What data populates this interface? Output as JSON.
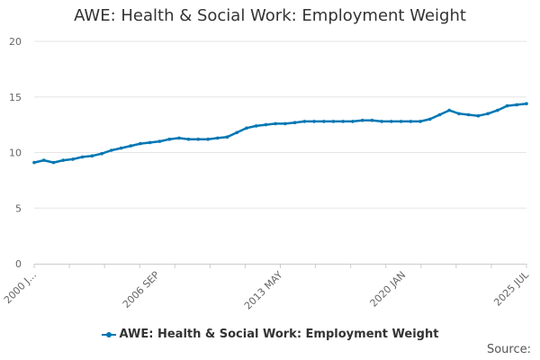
{
  "chart_data": {
    "type": "line",
    "title": "AWE: Health & Social Work: Employment Weight",
    "xlabel": "",
    "ylabel": "",
    "ylim": [
      0,
      20
    ],
    "yticks": [
      "0",
      "5",
      "10",
      "15",
      "20"
    ],
    "xtick_labels": [
      "2000 J...",
      "2006 SEP",
      "2013 MAY",
      "2020 JAN",
      "2025 JUL"
    ],
    "grid": true,
    "legend": "bottom-center",
    "series": [
      {
        "name": "AWE: Health & Social Work: Employment Weight",
        "color": "#0077b3",
        "x": [
          "2000 JAN",
          "2000 JUL",
          "2001 JAN",
          "2001 JUL",
          "2002 JAN",
          "2002 JUL",
          "2003 JAN",
          "2003 JUL",
          "2004 JAN",
          "2004 JUL",
          "2005 JAN",
          "2005 JUL",
          "2006 JAN",
          "2006 JUL",
          "2007 JAN",
          "2007 JUL",
          "2008 JAN",
          "2008 JUL",
          "2009 JAN",
          "2009 JUL",
          "2010 JAN",
          "2010 JUL",
          "2011 JAN",
          "2011 JUL",
          "2012 JAN",
          "2012 JUL",
          "2013 JAN",
          "2013 JUL",
          "2014 JAN",
          "2014 JUL",
          "2015 JAN",
          "2015 JUL",
          "2016 JAN",
          "2016 JUL",
          "2017 JAN",
          "2017 JUL",
          "2018 JAN",
          "2018 JUL",
          "2019 JAN",
          "2019 JUL",
          "2020 JAN",
          "2020 JUL",
          "2021 JAN",
          "2021 JUL",
          "2022 JAN",
          "2022 JUL",
          "2023 JAN",
          "2023 JUL",
          "2024 JAN",
          "2024 JUL",
          "2025 JAN",
          "2025 JUL"
        ],
        "y": [
          9.1,
          9.3,
          9.1,
          9.3,
          9.4,
          9.6,
          9.7,
          9.9,
          10.2,
          10.4,
          10.6,
          10.8,
          10.9,
          11.0,
          11.2,
          11.3,
          11.2,
          11.2,
          11.2,
          11.3,
          11.4,
          11.8,
          12.2,
          12.4,
          12.5,
          12.6,
          12.6,
          12.7,
          12.8,
          12.8,
          12.8,
          12.8,
          12.8,
          12.8,
          12.9,
          12.9,
          12.8,
          12.8,
          12.8,
          12.8,
          12.8,
          13.0,
          13.4,
          13.8,
          13.5,
          13.4,
          13.3,
          13.5,
          13.8,
          14.2,
          14.3,
          14.4
        ]
      }
    ]
  },
  "legend_label": "AWE: Health & Social Work: Employment Weight",
  "source_label": "Source:"
}
